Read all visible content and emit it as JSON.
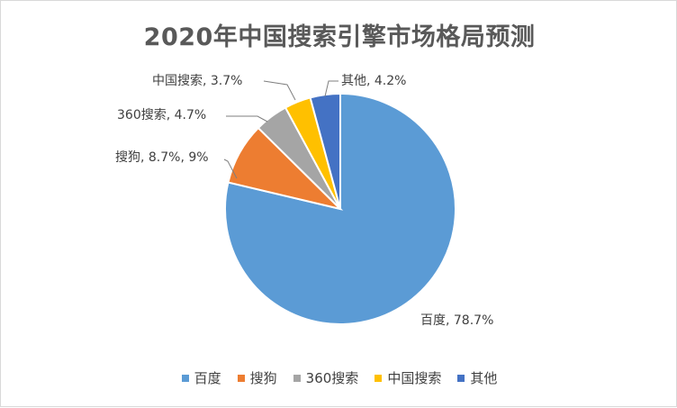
{
  "chart_data": {
    "type": "pie",
    "title": "2020年中国搜索引擎市场格局预测",
    "slices": [
      {
        "name": "百度",
        "value": 78.7,
        "color": "#5B9BD5",
        "label": "百度, 78.7%"
      },
      {
        "name": "搜狗",
        "value": 8.7,
        "color": "#ED7D31",
        "label": "搜狗, 8.7%, 9%"
      },
      {
        "name": "360搜索",
        "value": 4.7,
        "color": "#A5A5A5",
        "label": "360搜索, 4.7%"
      },
      {
        "name": "中国搜索",
        "value": 3.7,
        "color": "#FFC000",
        "label": "中国搜索, 3.7%"
      },
      {
        "name": "其他",
        "value": 4.2,
        "color": "#4472C4",
        "label": "其他, 4.2%"
      }
    ],
    "legend_position": "bottom"
  }
}
